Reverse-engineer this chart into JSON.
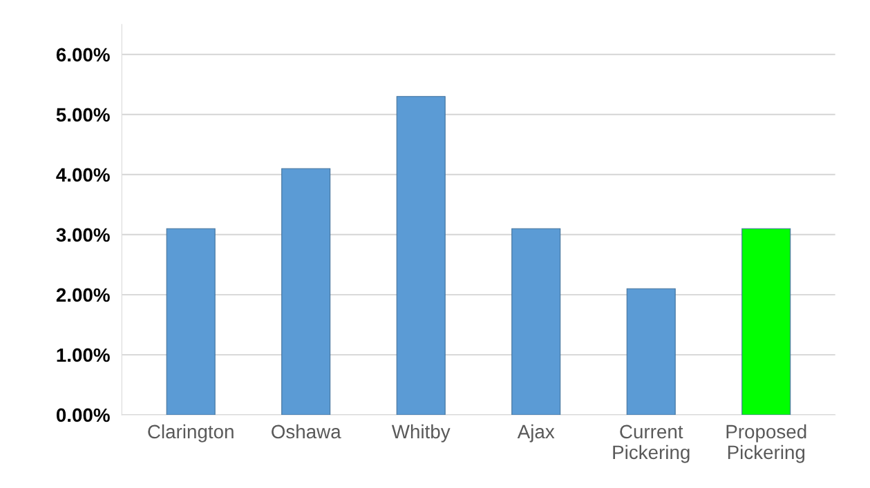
{
  "chart_data": {
    "type": "bar",
    "categories": [
      "Clarington",
      "Oshawa",
      "Whitby",
      "Ajax",
      "Current\nPickering",
      "Proposed\nPickering"
    ],
    "values": [
      3.1,
      4.1,
      5.3,
      3.1,
      2.1,
      3.1
    ],
    "colors": [
      "#5b9bd5",
      "#5b9bd5",
      "#5b9bd5",
      "#5b9bd5",
      "#5b9bd5",
      "#00ff00"
    ],
    "ylim": [
      0,
      6.5
    ],
    "yticks": [
      {
        "value": 0,
        "label": "0.00%"
      },
      {
        "value": 1,
        "label": "1.00%"
      },
      {
        "value": 2,
        "label": "2.00%"
      },
      {
        "value": 3,
        "label": "3.00%"
      },
      {
        "value": 4,
        "label": "4.00%"
      },
      {
        "value": 5,
        "label": "5.00%"
      },
      {
        "value": 6,
        "label": "6.00%"
      }
    ],
    "grid": "y"
  }
}
